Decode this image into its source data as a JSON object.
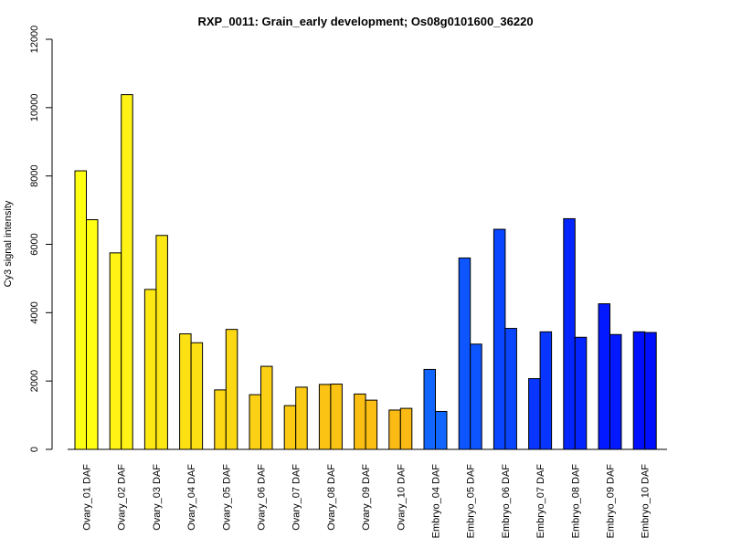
{
  "chart_data": {
    "type": "bar",
    "title": "RXP_0011: Grain_early development; Os08g0101600_36220",
    "xlabel": "",
    "ylabel": "Cy3 signal intensity",
    "ylim": [
      0,
      12000
    ],
    "yticks": [
      0,
      2000,
      4000,
      6000,
      8000,
      10000,
      12000
    ],
    "grid": false,
    "categories": [
      "Ovary_01 DAF",
      "Ovary_02 DAF",
      "Ovary_03 DAF",
      "Ovary_04 DAF",
      "Ovary_05 DAF",
      "Ovary_06 DAF",
      "Ovary_07 DAF",
      "Ovary_08 DAF",
      "Ovary_09 DAF",
      "Ovary_10 DAF",
      "Embryo_04 DAF",
      "Embryo_05 DAF",
      "Embryo_06 DAF",
      "Embryo_07 DAF",
      "Embryo_08 DAF",
      "Embryo_09 DAF",
      "Embryo_10 DAF"
    ],
    "series": [
      {
        "values": [
          8150,
          5750,
          4680,
          3380,
          1740,
          1600,
          1280,
          1900,
          1620,
          1150,
          2340,
          5600,
          6440,
          2070,
          6750,
          4260,
          3440
        ]
      },
      {
        "values": [
          6720,
          10380,
          6260,
          3120,
          3510,
          2430,
          1820,
          1910,
          1440,
          1200,
          1110,
          3080,
          3540,
          3440,
          3280,
          3360,
          3420
        ]
      }
    ],
    "colors": [
      "#ffff14",
      "#fef314",
      "#fde814",
      "#fde014",
      "#fcd814",
      "#fcd014",
      "#fbca14",
      "#fbc414",
      "#fbbf14",
      "#fbbb14",
      "#1166ff",
      "#0d55ff",
      "#0a45ff",
      "#0835ff",
      "#0525ff",
      "#0319ff",
      "#0010ff"
    ]
  }
}
